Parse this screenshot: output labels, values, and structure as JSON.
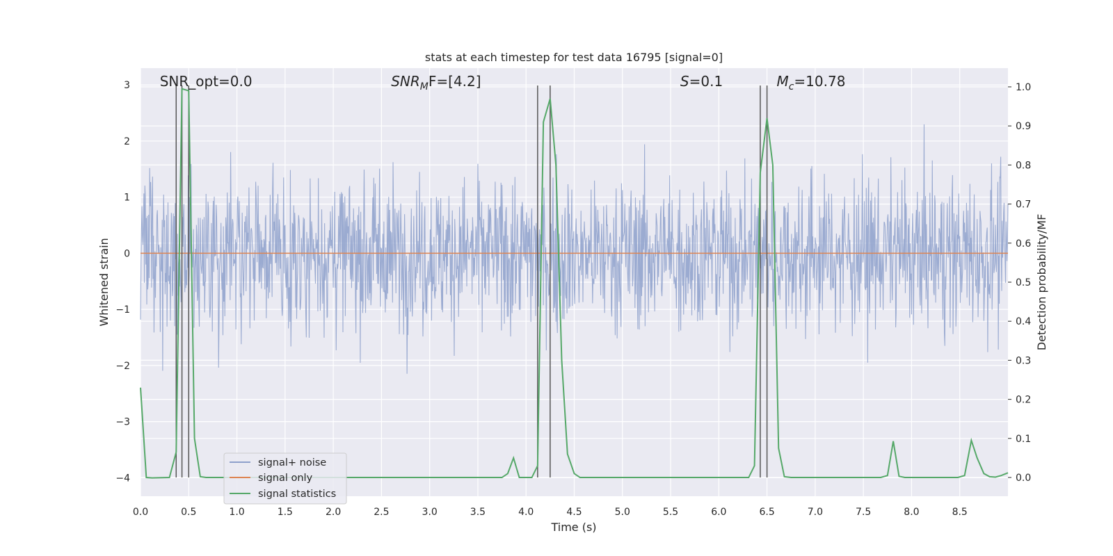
{
  "chart_data": {
    "type": "line",
    "title": "stats at each timestep for test data 16795 [signal=0]",
    "xlabel": "Time (s)",
    "ylabel_left": "Whitened strain",
    "ylabel_right": "Detection probability/MF",
    "xlim": [
      0.0,
      9.0
    ],
    "ylim_left": [
      -4.33,
      3.3
    ],
    "ylim_right": [
      -0.048,
      1.048
    ],
    "x_ticks": [
      "0.0",
      "0.5",
      "1.0",
      "1.5",
      "2.0",
      "2.5",
      "3.0",
      "3.5",
      "4.0",
      "4.5",
      "5.0",
      "5.5",
      "6.0",
      "6.5",
      "7.0",
      "7.5",
      "8.0",
      "8.5"
    ],
    "y_left_ticks": [
      "3",
      "2",
      "1",
      "0",
      "−1",
      "−2",
      "−3",
      "−4"
    ],
    "y_right_ticks": [
      "1.0",
      "0.9",
      "0.8",
      "0.7",
      "0.6",
      "0.5",
      "0.4",
      "0.3",
      "0.2",
      "0.1",
      "0.0"
    ],
    "grid": true,
    "legend_position": "lower-left",
    "annotations": [
      {
        "label": "SNR_opt=0.0",
        "x": 0.2
      },
      {
        "label": "SNR",
        "sub": "M",
        "suffix": "F=[4.2]",
        "x": 2.6
      },
      {
        "label": "S",
        "suffix": "=0.1",
        "x": 5.6
      },
      {
        "label": "M",
        "sub": "c",
        "suffix": "=10.78",
        "x": 6.6
      }
    ],
    "vlines_x": [
      0.37,
      0.43,
      0.5,
      4.12,
      4.25,
      6.43,
      6.5
    ],
    "series": [
      {
        "name": "signal+ noise",
        "axis": "left",
        "color": "#8da0cb",
        "style": "noise",
        "x_range": [
          0.0,
          9.0
        ],
        "base_amplitude": 1.2,
        "peak_amplitude": 2.95
      },
      {
        "name": "signal only",
        "axis": "left",
        "color": "#dd8452",
        "x": [
          0.0,
          9.0
        ],
        "y": [
          0.0,
          0.0
        ]
      },
      {
        "name": "signal statistics",
        "axis": "right",
        "color": "#55a868",
        "x": [
          0.0,
          0.06,
          0.12,
          0.3,
          0.37,
          0.43,
          0.5,
          0.56,
          0.62,
          0.68,
          1.0,
          2.0,
          3.0,
          3.75,
          3.81,
          3.87,
          3.93,
          4.06,
          4.12,
          4.18,
          4.25,
          4.31,
          4.37,
          4.43,
          4.5,
          4.56,
          4.62,
          5.0,
          6.0,
          6.31,
          6.37,
          6.43,
          6.5,
          6.56,
          6.62,
          6.68,
          6.75,
          7.0,
          7.68,
          7.75,
          7.81,
          7.87,
          7.93,
          8.0,
          8.48,
          8.55,
          8.62,
          8.68,
          8.75,
          8.81,
          8.87,
          8.93,
          9.0
        ],
        "y": [
          0.23,
          0.0,
          -0.001,
          0.0,
          0.065,
          0.995,
          0.99,
          0.1,
          0.002,
          0.0,
          0.0,
          0.0,
          0.0,
          0.0,
          0.01,
          0.05,
          0.0,
          0.0,
          0.03,
          0.91,
          0.97,
          0.8,
          0.3,
          0.06,
          0.01,
          0.0,
          0.0,
          0.0,
          0.0,
          0.0,
          0.03,
          0.78,
          0.92,
          0.8,
          0.075,
          0.002,
          0.0,
          0.0,
          0.0,
          0.005,
          0.093,
          0.003,
          0.0,
          0.0,
          0.0,
          0.005,
          0.095,
          0.05,
          0.01,
          0.002,
          0.001,
          0.005,
          0.012
        ]
      }
    ]
  }
}
